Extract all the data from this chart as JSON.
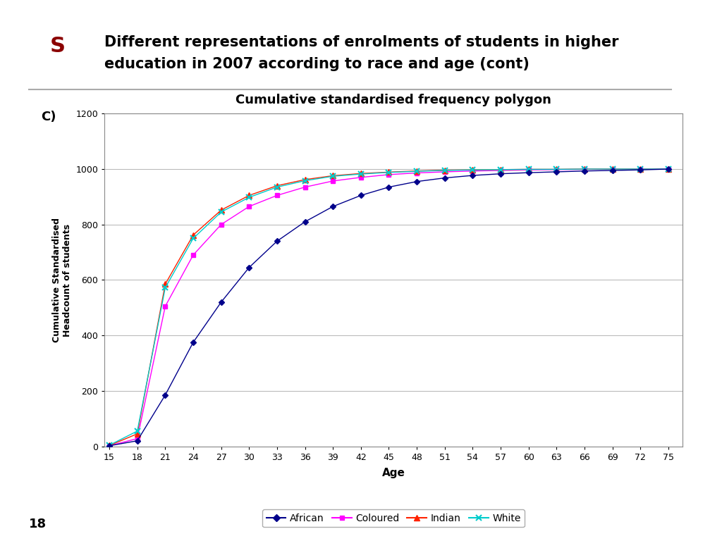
{
  "title": "Cumulative standardised frequency polygon",
  "slide_title_line1": "Different representations of enrolments of students in higher",
  "slide_title_line2": "education in 2007 according to race and age (cont)",
  "xlabel": "Age",
  "ylabel": "Cumulative Standardised\nHeadcount of students",
  "panel_label": "C)",
  "page_number": "18",
  "ages": [
    15,
    18,
    21,
    24,
    27,
    30,
    33,
    36,
    39,
    42,
    45,
    48,
    51,
    54,
    57,
    60,
    63,
    66,
    69,
    72,
    75
  ],
  "african": [
    2,
    20,
    185,
    375,
    520,
    645,
    740,
    810,
    865,
    905,
    935,
    955,
    968,
    977,
    983,
    987,
    990,
    993,
    995,
    997,
    1000
  ],
  "coloured": [
    2,
    28,
    505,
    690,
    800,
    865,
    905,
    935,
    957,
    970,
    980,
    986,
    990,
    993,
    995,
    997,
    998,
    999,
    999,
    1000,
    1000
  ],
  "indian": [
    3,
    45,
    585,
    762,
    852,
    905,
    940,
    962,
    976,
    984,
    989,
    993,
    996,
    997,
    998,
    999,
    999,
    1000,
    1000,
    1000,
    1000
  ],
  "white": [
    4,
    55,
    572,
    750,
    845,
    898,
    935,
    958,
    974,
    982,
    988,
    992,
    995,
    997,
    998,
    999,
    999,
    1000,
    1000,
    1000,
    1000
  ],
  "african_color": "#00008B",
  "coloured_color": "#FF00FF",
  "indian_color": "#FF2200",
  "white_color": "#00CCCC",
  "ylim": [
    0,
    1200
  ],
  "yticks": [
    0,
    200,
    400,
    600,
    800,
    1000,
    1200
  ],
  "background_color": "#FFFFFF",
  "grid_color": "#BBBBBB",
  "chart_border_color": "#888888"
}
